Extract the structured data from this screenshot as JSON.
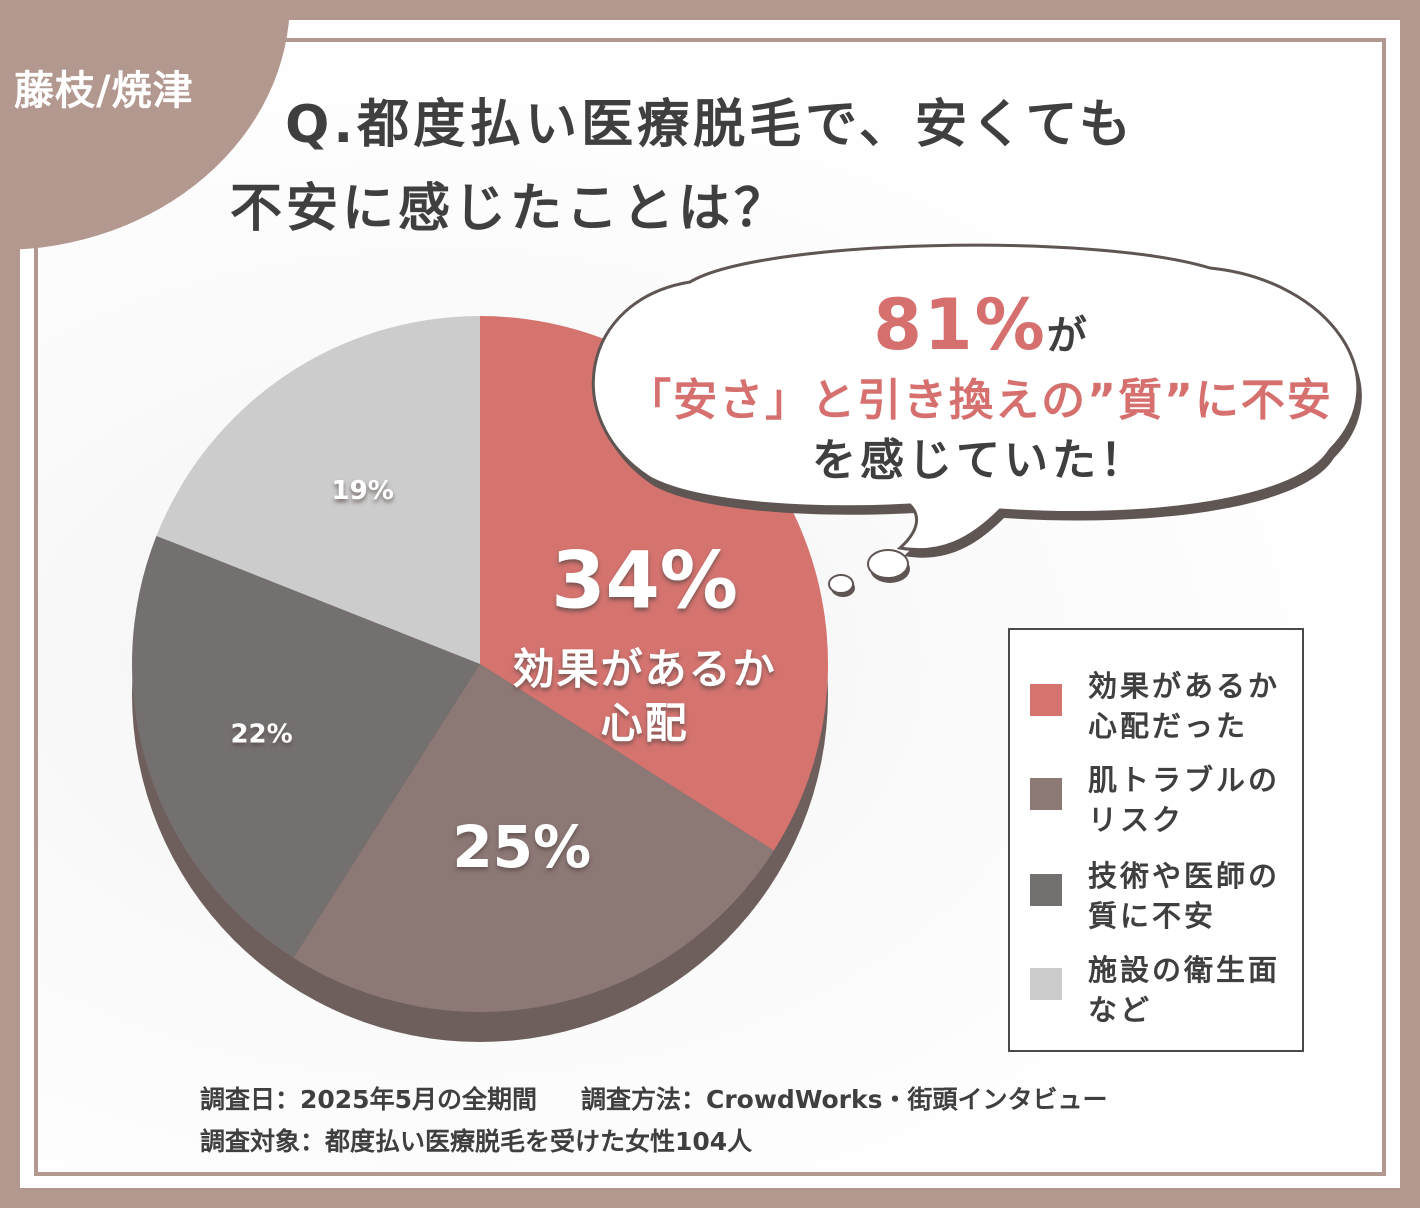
{
  "badge": "藤枝/焼津",
  "title": {
    "line1": "Q.都度払い医療脱毛で、安くても",
    "line2": "不安に感じたことは？"
  },
  "callout": {
    "highlight": "81%",
    "suffix": "が",
    "line2": "「安さ」と引き換えの”質”に不安",
    "line3": "を感じていた！"
  },
  "chart_data": {
    "type": "pie",
    "categories": [
      "効果があるか心配だった",
      "肌トラブルのリスク",
      "技術や医師の質に不安",
      "施設の衛生面など"
    ],
    "values": [
      34,
      25,
      22,
      19
    ],
    "data_labels": [
      "34%",
      "25%",
      "22%",
      "19%"
    ],
    "highlight_label": [
      "効果があるか",
      "心配"
    ],
    "colors": [
      "#d5736f",
      "#8c7875",
      "#757070",
      "#cccccc"
    ]
  },
  "legend": [
    {
      "line1": "効果があるか",
      "line2": "心配だった",
      "color": "#d5736f"
    },
    {
      "line1": "肌トラブルの",
      "line2": "リスク",
      "color": "#8c7875"
    },
    {
      "line1": "技術や医師の",
      "line2": "質に不安",
      "color": "#757070"
    },
    {
      "line1": "施設の衛生面",
      "line2": "など",
      "color": "#cccccc"
    }
  ],
  "footer": {
    "date": "調査日：2025年5月の全期間",
    "method": "調査方法：CrowdWorks・街頭インタビュー",
    "target": "調査対象：都度払い医療脱毛を受けた女性104人"
  }
}
